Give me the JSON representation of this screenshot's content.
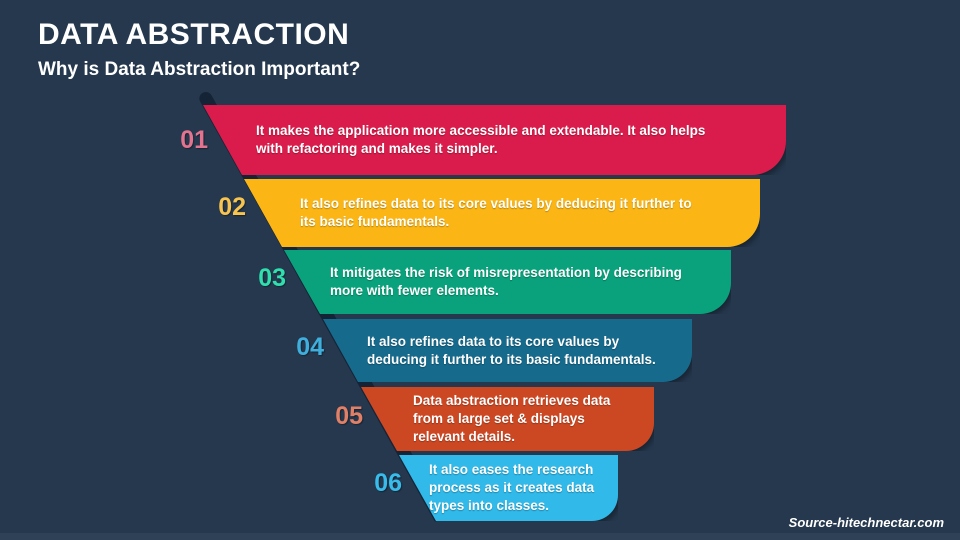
{
  "slide": {
    "title": "DATA ABSTRACTION",
    "subtitle": "Why is Data Abstraction Important?",
    "source": "Source-hitechnectar.com",
    "background_color": "#25384E"
  },
  "funnel": {
    "bars": [
      {
        "number": "01",
        "number_color": "#E4738F",
        "bar_color": "#D91C4B",
        "lines": [
          "It makes the application more accessible and extendable. It also helps",
          "with refactoring and makes it simpler."
        ]
      },
      {
        "number": "02",
        "number_color": "#F6C44F",
        "bar_color": "#FBB615",
        "lines": [
          "It also refines data to its core values by deducing it further to",
          "its basic fundamentals."
        ]
      },
      {
        "number": "03",
        "number_color": "#30DFAE",
        "bar_color": "#0AA27C",
        "lines": [
          "It mitigates the risk of misrepresentation by describing",
          "more with fewer elements."
        ]
      },
      {
        "number": "04",
        "number_color": "#3FB0DE",
        "bar_color": "#166A8C",
        "lines": [
          "It also refines data to its core values by",
          "deducing it further to its basic fundamentals."
        ]
      },
      {
        "number": "05",
        "number_color": "#E18066",
        "bar_color": "#CC4823",
        "lines": [
          "Data abstraction retrieves data",
          "from a large set & displays",
          "relevant details."
        ]
      },
      {
        "number": "06",
        "number_color": "#38BCEC",
        "bar_color": "#30B9E9",
        "lines": [
          "It also eases the research",
          "process as it creates data",
          "types into classes."
        ]
      }
    ]
  }
}
